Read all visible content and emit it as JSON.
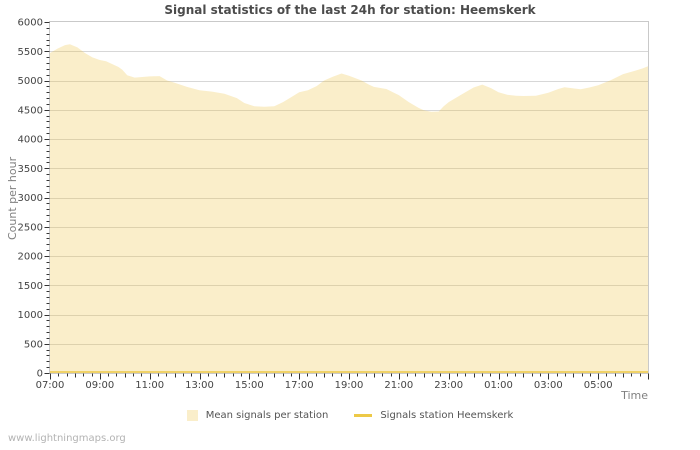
{
  "watermark": "www.lightningmaps.org",
  "colors": {
    "background": "#ffffff",
    "title": "#4c4c4c",
    "axis_label": "#808080",
    "tick_label": "#444444",
    "tick": "#333333",
    "grid_line": "#d7d7d7",
    "plot_border": "#c9c9c9",
    "area_fill": "rgba(237,194,64,0.28)",
    "series_line": "#edc947",
    "legend_label": "#545454",
    "watermark": "#b3b3b3"
  },
  "chart_data": {
    "type": "area",
    "title": "Signal statistics of the last 24h for station: Heemskerk",
    "xlabel": "Time",
    "ylabel": "Count per hour",
    "ylim": [
      0,
      6000
    ],
    "y_major_step": 500,
    "y_minor_step": 100,
    "x_span_hours": 24,
    "x_minor_per_hour": 3,
    "grid": true,
    "legend_position": "bottom-center",
    "x_ticks": [
      {
        "hour": 0,
        "label": "07:00"
      },
      {
        "hour": 2,
        "label": "09:00"
      },
      {
        "hour": 4,
        "label": "11:00"
      },
      {
        "hour": 6,
        "label": "13:00"
      },
      {
        "hour": 8,
        "label": "15:00"
      },
      {
        "hour": 10,
        "label": "17:00"
      },
      {
        "hour": 12,
        "label": "19:00"
      },
      {
        "hour": 14,
        "label": "21:00"
      },
      {
        "hour": 16,
        "label": "23:00"
      },
      {
        "hour": 18,
        "label": "01:00"
      },
      {
        "hour": 20,
        "label": "03:00"
      },
      {
        "hour": 22,
        "label": "05:00"
      }
    ],
    "series": [
      {
        "name": "Mean signals per station",
        "kind": "area",
        "color": "#edc240",
        "fill": "rgba(237,194,64,0.28)",
        "points": [
          [
            0,
            5470
          ],
          [
            0.3,
            5545
          ],
          [
            0.6,
            5605
          ],
          [
            0.8,
            5620
          ],
          [
            1.1,
            5565
          ],
          [
            1.4,
            5470
          ],
          [
            1.7,
            5395
          ],
          [
            2,
            5350
          ],
          [
            2.25,
            5330
          ],
          [
            2.5,
            5280
          ],
          [
            2.75,
            5230
          ],
          [
            2.9,
            5185
          ],
          [
            3.1,
            5090
          ],
          [
            3.4,
            5050
          ],
          [
            3.7,
            5060
          ],
          [
            4,
            5070
          ],
          [
            4.4,
            5075
          ],
          [
            4.7,
            5000
          ],
          [
            5,
            4960
          ],
          [
            5.5,
            4890
          ],
          [
            6,
            4835
          ],
          [
            6.5,
            4810
          ],
          [
            7,
            4775
          ],
          [
            7.5,
            4700
          ],
          [
            7.8,
            4615
          ],
          [
            8.2,
            4560
          ],
          [
            8.6,
            4550
          ],
          [
            9,
            4560
          ],
          [
            9.35,
            4630
          ],
          [
            9.7,
            4720
          ],
          [
            10,
            4800
          ],
          [
            10.35,
            4835
          ],
          [
            10.7,
            4905
          ],
          [
            11,
            5000
          ],
          [
            11.35,
            5065
          ],
          [
            11.7,
            5120
          ],
          [
            12,
            5080
          ],
          [
            12.5,
            5000
          ],
          [
            12.8,
            4930
          ],
          [
            13,
            4890
          ],
          [
            13.5,
            4855
          ],
          [
            13.8,
            4790
          ],
          [
            14,
            4750
          ],
          [
            14.4,
            4630
          ],
          [
            14.8,
            4530
          ],
          [
            15,
            4490
          ],
          [
            15.3,
            4465
          ],
          [
            15.6,
            4470
          ],
          [
            15.8,
            4560
          ],
          [
            16,
            4630
          ],
          [
            16.5,
            4755
          ],
          [
            17,
            4880
          ],
          [
            17.35,
            4930
          ],
          [
            17.7,
            4870
          ],
          [
            18,
            4800
          ],
          [
            18.35,
            4755
          ],
          [
            18.7,
            4740
          ],
          [
            19,
            4735
          ],
          [
            19.5,
            4740
          ],
          [
            20,
            4790
          ],
          [
            20.4,
            4855
          ],
          [
            20.65,
            4885
          ],
          [
            21,
            4865
          ],
          [
            21.3,
            4850
          ],
          [
            21.65,
            4880
          ],
          [
            22,
            4920
          ],
          [
            22.5,
            5005
          ],
          [
            23,
            5110
          ],
          [
            23.5,
            5170
          ],
          [
            23.8,
            5210
          ],
          [
            24,
            5245
          ]
        ]
      },
      {
        "name": "Signals station Heemskerk",
        "kind": "line",
        "color": "#edc947",
        "points": [
          [
            0,
            0
          ],
          [
            24,
            0
          ]
        ]
      }
    ]
  }
}
